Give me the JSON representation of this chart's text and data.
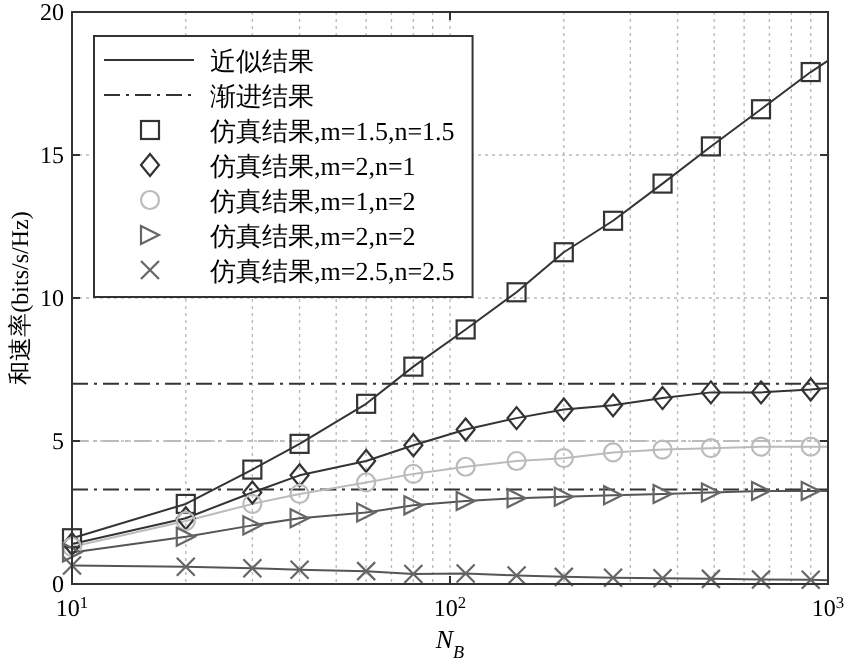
{
  "chart_data": {
    "type": "line",
    "xlabel": "N$_{B}$",
    "ylabel": "和速率(bits/s/Hz)",
    "log": "x",
    "grid": true,
    "legend": "top left",
    "xlim": [
      10,
      1000
    ],
    "ylim": [
      0,
      20
    ],
    "xticks": [
      {
        "value": 10,
        "label": "10$^{1}$"
      },
      {
        "value": 100,
        "label": "10$^{2}$"
      },
      {
        "value": 1000,
        "label": "10$^{3}$"
      }
    ],
    "yticks": [
      0,
      5,
      10,
      15,
      20
    ],
    "ref_lines": [
      {
        "axis": "y",
        "value": 7.0,
        "label": "渐进结果",
        "color": "#333333",
        "line_style": "dashdot"
      },
      {
        "axis": "y",
        "value": 5.0,
        "color": "#bbbbbb",
        "line_style": "dashdot"
      },
      {
        "axis": "y",
        "value": 3.3,
        "color": "#333333",
        "line_style": "dashdot"
      }
    ],
    "series": [
      {
        "type": "line",
        "name": "近似结果",
        "color": "#333333",
        "marker": "none",
        "line_style": "solid",
        "x": [
          10,
          20,
          30,
          40,
          60,
          80,
          110,
          150,
          200,
          270,
          365,
          490,
          665,
          900,
          1000
        ],
        "values": [
          1.6,
          2.8,
          4.0,
          4.9,
          6.3,
          7.6,
          8.9,
          10.2,
          11.6,
          12.7,
          14.0,
          15.3,
          16.6,
          17.9,
          18.3
        ]
      },
      {
        "type": "line",
        "color": "#333333",
        "marker": "none",
        "line_style": "solid",
        "x": [
          10,
          20,
          30,
          40,
          60,
          80,
          110,
          150,
          200,
          270,
          365,
          490,
          665,
          900,
          1000
        ],
        "values": [
          1.4,
          2.3,
          3.2,
          3.8,
          4.3,
          4.85,
          5.4,
          5.8,
          6.1,
          6.25,
          6.5,
          6.7,
          6.7,
          6.8,
          6.85
        ]
      },
      {
        "type": "line",
        "color": "#bbbbbb",
        "marker": "none",
        "line_style": "solid",
        "x": [
          10,
          20,
          30,
          40,
          60,
          80,
          110,
          150,
          200,
          270,
          365,
          490,
          665,
          900,
          1000
        ],
        "values": [
          1.3,
          2.2,
          2.8,
          3.15,
          3.55,
          3.85,
          4.1,
          4.3,
          4.4,
          4.6,
          4.7,
          4.75,
          4.8,
          4.8,
          4.8
        ]
      },
      {
        "type": "line",
        "color": "#555555",
        "marker": "none",
        "line_style": "solid",
        "x": [
          10,
          20,
          30,
          40,
          60,
          80,
          110,
          150,
          200,
          270,
          365,
          490,
          665,
          900,
          1000
        ],
        "values": [
          1.1,
          1.65,
          2.05,
          2.3,
          2.5,
          2.75,
          2.9,
          3.0,
          3.05,
          3.1,
          3.15,
          3.2,
          3.25,
          3.25,
          3.25
        ]
      },
      {
        "type": "line",
        "color": "#555555",
        "marker": "none",
        "line_style": "solid",
        "x": [
          10,
          20,
          30,
          40,
          60,
          80,
          110,
          150,
          200,
          270,
          365,
          490,
          665,
          900,
          1000
        ],
        "values": [
          0.65,
          0.6,
          0.55,
          0.5,
          0.45,
          0.35,
          0.37,
          0.3,
          0.25,
          0.22,
          0.2,
          0.18,
          0.16,
          0.15,
          0.13
        ]
      },
      {
        "type": "scatter",
        "name": "仿真结果,m=1.5,n=1.5",
        "color": "#333333",
        "marker": "square",
        "x": [
          10,
          20,
          30,
          40,
          60,
          80,
          110,
          150,
          200,
          270,
          365,
          490,
          665,
          900
        ],
        "values": [
          1.6,
          2.8,
          4.0,
          4.9,
          6.3,
          7.6,
          8.9,
          10.2,
          11.6,
          12.7,
          14.0,
          15.3,
          16.6,
          17.9
        ]
      },
      {
        "type": "scatter",
        "name": "仿真结果,m=2,n=1",
        "color": "#333333",
        "marker": "diamond",
        "x": [
          10,
          20,
          30,
          40,
          60,
          80,
          110,
          150,
          200,
          270,
          365,
          490,
          665,
          900
        ],
        "values": [
          1.4,
          2.3,
          3.2,
          3.8,
          4.3,
          4.85,
          5.4,
          5.8,
          6.1,
          6.25,
          6.5,
          6.7,
          6.7,
          6.8
        ]
      },
      {
        "type": "scatter",
        "name": "仿真结果,m=1,n=2",
        "color": "#bbbbbb",
        "marker": "circle",
        "x": [
          10,
          20,
          30,
          40,
          60,
          80,
          110,
          150,
          200,
          270,
          365,
          490,
          665,
          900
        ],
        "values": [
          1.3,
          2.2,
          2.8,
          3.15,
          3.55,
          3.85,
          4.1,
          4.3,
          4.4,
          4.6,
          4.7,
          4.75,
          4.8,
          4.8
        ]
      },
      {
        "type": "scatter",
        "name": "仿真结果,m=2,n=2",
        "color": "#666666",
        "marker": "triangle",
        "x": [
          10,
          20,
          30,
          40,
          60,
          80,
          110,
          150,
          200,
          270,
          365,
          490,
          665,
          900
        ],
        "values": [
          1.1,
          1.65,
          2.05,
          2.3,
          2.5,
          2.75,
          2.9,
          3.0,
          3.05,
          3.1,
          3.15,
          3.2,
          3.25,
          3.25
        ]
      },
      {
        "type": "scatter",
        "name": "仿真结果,m=2.5,n=2.5",
        "color": "#666666",
        "marker": "cross",
        "x": [
          10,
          20,
          30,
          40,
          60,
          80,
          110,
          150,
          200,
          270,
          365,
          490,
          665,
          900
        ],
        "values": [
          0.65,
          0.6,
          0.55,
          0.5,
          0.45,
          0.35,
          0.37,
          0.3,
          0.25,
          0.22,
          0.2,
          0.18,
          0.16,
          0.15
        ]
      }
    ]
  }
}
